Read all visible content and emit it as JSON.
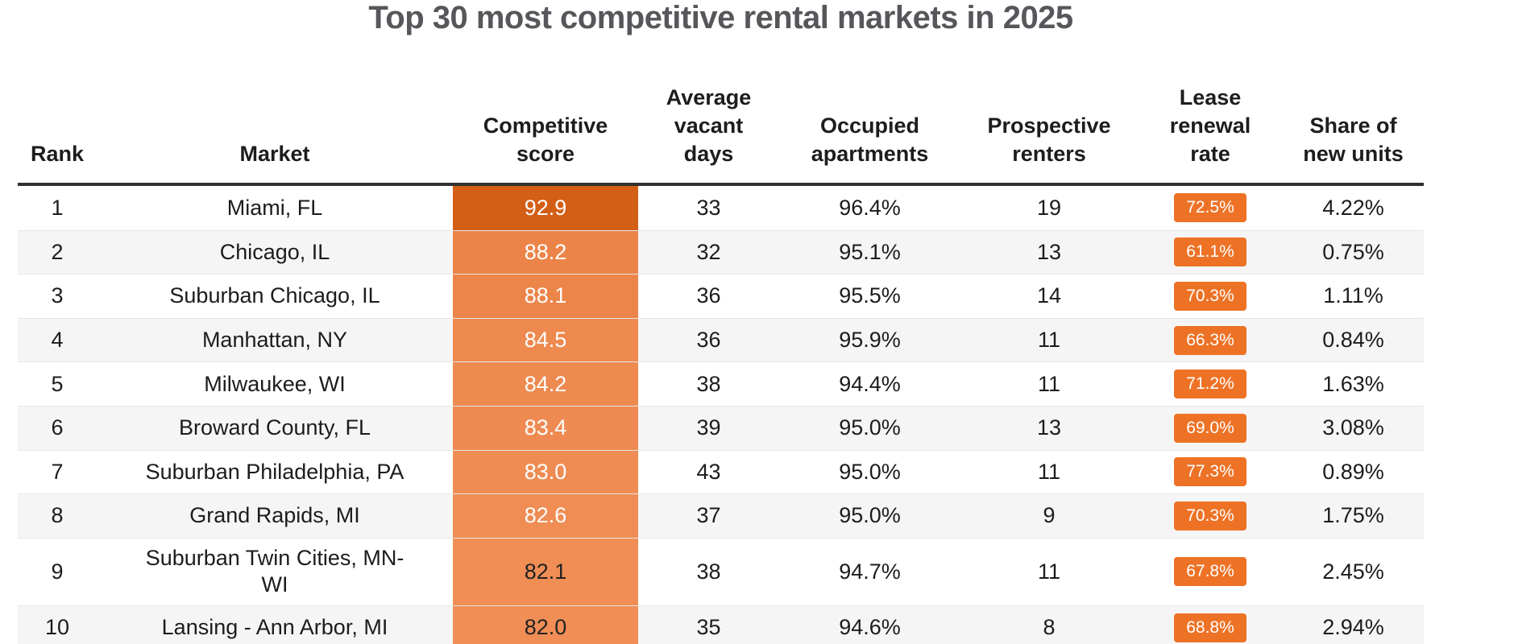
{
  "title": "Top 30 most competitive rental markets in 2025",
  "theme": {
    "title_color": "#56575b",
    "header_rule_color": "#303030",
    "zebra_stripe_color": "#f5f5f6",
    "badge_bg": "#ed7226",
    "badge_text": "#ffffff",
    "score_top_bg": "#d35e15",
    "score_light_bg": "#ef8b51"
  },
  "chart_data": {
    "type": "table",
    "title": "Top 30 most competitive rental markets in 2025",
    "columns": [
      "Rank",
      "Market",
      "Competitive score",
      "Average vacant days",
      "Occupied apartments",
      "Prospective renters",
      "Lease renewal rate",
      "Share of new units"
    ],
    "rows": [
      {
        "rank": "1",
        "market": "Miami, FL",
        "score": "92.9",
        "score_bg": "#d35e15",
        "score_color": "#ffffff",
        "vacant_days": "33",
        "occupied": "96.4%",
        "prospective": "19",
        "lease_renewal": "72.5%",
        "share_new": "4.22%"
      },
      {
        "rank": "2",
        "market": "Chicago, IL",
        "score": "88.2",
        "score_bg": "#ec8449",
        "score_color": "#ffffff",
        "vacant_days": "32",
        "occupied": "95.1%",
        "prospective": "13",
        "lease_renewal": "61.1%",
        "share_new": "0.75%"
      },
      {
        "rank": "3",
        "market": "Suburban Chicago, IL",
        "score": "88.1",
        "score_bg": "#ec854a",
        "score_color": "#ffffff",
        "vacant_days": "36",
        "occupied": "95.5%",
        "prospective": "14",
        "lease_renewal": "70.3%",
        "share_new": "1.11%"
      },
      {
        "rank": "4",
        "market": "Manhattan, NY",
        "score": "84.5",
        "score_bg": "#ee894f",
        "score_color": "#ffffff",
        "vacant_days": "36",
        "occupied": "95.9%",
        "prospective": "11",
        "lease_renewal": "66.3%",
        "share_new": "0.84%"
      },
      {
        "rank": "5",
        "market": "Milwaukee, WI",
        "score": "84.2",
        "score_bg": "#ee8a50",
        "score_color": "#ffffff",
        "vacant_days": "38",
        "occupied": "94.4%",
        "prospective": "11",
        "lease_renewal": "71.2%",
        "share_new": "1.63%"
      },
      {
        "rank": "6",
        "market": "Broward County, FL",
        "score": "83.4",
        "score_bg": "#ef8b52",
        "score_color": "#ffffff",
        "vacant_days": "39",
        "occupied": "95.0%",
        "prospective": "13",
        "lease_renewal": "69.0%",
        "share_new": "3.08%"
      },
      {
        "rank": "7",
        "market": "Suburban Philadelphia, PA",
        "score": "83.0",
        "score_bg": "#ef8c53",
        "score_color": "#ffffff",
        "vacant_days": "43",
        "occupied": "95.0%",
        "prospective": "11",
        "lease_renewal": "77.3%",
        "share_new": "0.89%"
      },
      {
        "rank": "8",
        "market": "Grand Rapids, MI",
        "score": "82.6",
        "score_bg": "#ef8d54",
        "score_color": "#ffffff",
        "vacant_days": "37",
        "occupied": "95.0%",
        "prospective": "9",
        "lease_renewal": "70.3%",
        "share_new": "1.75%"
      },
      {
        "rank": "9",
        "market": "Suburban Twin Cities, MN-WI",
        "score": "82.1",
        "score_bg": "#f08e55",
        "score_color": "#222222",
        "vacant_days": "38",
        "occupied": "94.7%",
        "prospective": "11",
        "lease_renewal": "67.8%",
        "share_new": "2.45%"
      },
      {
        "rank": "10",
        "market": "Lansing - Ann Arbor, MI",
        "score": "82.0",
        "score_bg": "#f08e56",
        "score_color": "#222222",
        "vacant_days": "35",
        "occupied": "94.6%",
        "prospective": "8",
        "lease_renewal": "68.8%",
        "share_new": "2.94%"
      }
    ]
  }
}
